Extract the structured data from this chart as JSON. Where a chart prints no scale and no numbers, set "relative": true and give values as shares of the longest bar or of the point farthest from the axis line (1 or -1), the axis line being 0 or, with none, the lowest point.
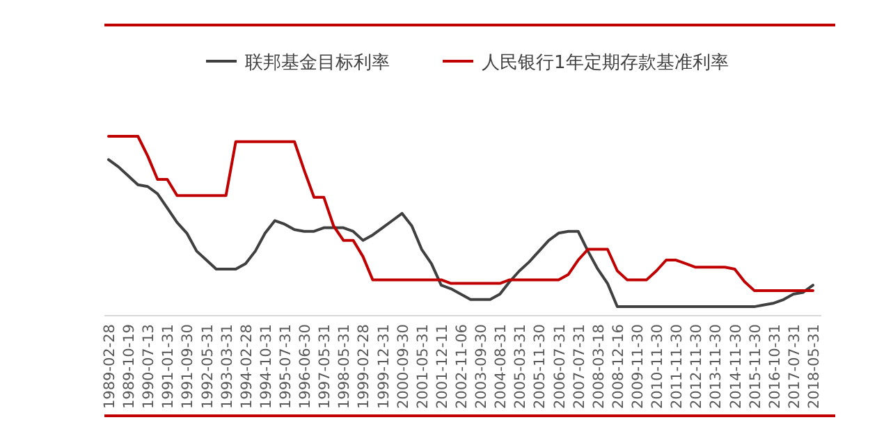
{
  "chart_data": {
    "type": "line",
    "relative": true,
    "legend": "top",
    "grid": false,
    "line_style": "solid",
    "marker": "none",
    "categories": [
      "1989-02-28",
      null,
      "1989-10-19",
      null,
      "1990-07-13",
      null,
      "1991-01-31",
      null,
      "1991-09-30",
      null,
      "1992-05-31",
      null,
      "1993-03-31",
      null,
      "1994-02-28",
      null,
      "1994-10-31",
      null,
      "1995-07-31",
      null,
      "1996-06-30",
      null,
      "1997-05-31",
      null,
      "1998-05-31",
      null,
      "1999-02-28",
      null,
      "1999-12-31",
      null,
      "2000-09-30",
      null,
      "2001-05-31",
      null,
      "2001-12-11",
      null,
      "2002-11-06",
      null,
      "2003-09-30",
      null,
      "2004-08-31",
      null,
      "2005-03-31",
      null,
      "2005-11-30",
      null,
      "2006-07-31",
      null,
      "2007-07-31",
      null,
      "2008-03-18",
      null,
      "2008-12-16",
      null,
      "2009-11-30",
      null,
      "2010-11-30",
      null,
      "2011-11-30",
      null,
      "2012-11-30",
      null,
      "2013-11-30",
      null,
      "2014-11-30",
      null,
      "2015-11-30",
      null,
      "2016-10-31",
      null,
      "2017-07-31",
      null,
      "2018-05-31"
    ],
    "series": [
      {
        "name": "联邦基金目标利率",
        "color": "#404040",
        "values": [
          0.87,
          0.83,
          0.78,
          0.73,
          0.72,
          0.68,
          0.6,
          0.52,
          0.46,
          0.36,
          0.31,
          0.26,
          0.26,
          0.26,
          0.29,
          0.36,
          0.46,
          0.53,
          0.51,
          0.48,
          0.47,
          0.47,
          0.49,
          0.49,
          0.49,
          0.47,
          0.42,
          0.45,
          0.49,
          0.53,
          0.57,
          0.5,
          0.37,
          0.29,
          0.17,
          0.15,
          0.12,
          0.09,
          0.09,
          0.09,
          0.12,
          0.19,
          0.25,
          0.3,
          0.36,
          0.42,
          0.46,
          0.47,
          0.47,
          0.36,
          0.26,
          0.18,
          0.05,
          0.05,
          0.05,
          0.05,
          0.05,
          0.05,
          0.05,
          0.05,
          0.05,
          0.05,
          0.05,
          0.05,
          0.05,
          0.05,
          0.05,
          0.06,
          0.07,
          0.09,
          0.12,
          0.13,
          0.17
        ]
      },
      {
        "name": "人民银行1年定期存款基准利率",
        "color": "#c00000",
        "values": [
          1,
          1,
          1,
          1,
          0.89,
          0.76,
          0.76,
          0.67,
          0.67,
          0.67,
          0.67,
          0.67,
          0.67,
          0.97,
          0.97,
          0.97,
          0.97,
          0.97,
          0.97,
          0.97,
          0.81,
          0.66,
          0.66,
          0.5,
          0.42,
          0.42,
          0.33,
          0.2,
          0.2,
          0.2,
          0.2,
          0.2,
          0.2,
          0.2,
          0.2,
          0.18,
          0.18,
          0.18,
          0.18,
          0.18,
          0.18,
          0.2,
          0.2,
          0.2,
          0.2,
          0.2,
          0.2,
          0.23,
          0.31,
          0.37,
          0.37,
          0.37,
          0.25,
          0.2,
          0.2,
          0.2,
          0.25,
          0.31,
          0.31,
          0.29,
          0.27,
          0.27,
          0.27,
          0.27,
          0.26,
          0.19,
          0.14,
          0.14,
          0.14,
          0.14,
          0.14,
          0.14,
          0.14
        ]
      }
    ]
  }
}
